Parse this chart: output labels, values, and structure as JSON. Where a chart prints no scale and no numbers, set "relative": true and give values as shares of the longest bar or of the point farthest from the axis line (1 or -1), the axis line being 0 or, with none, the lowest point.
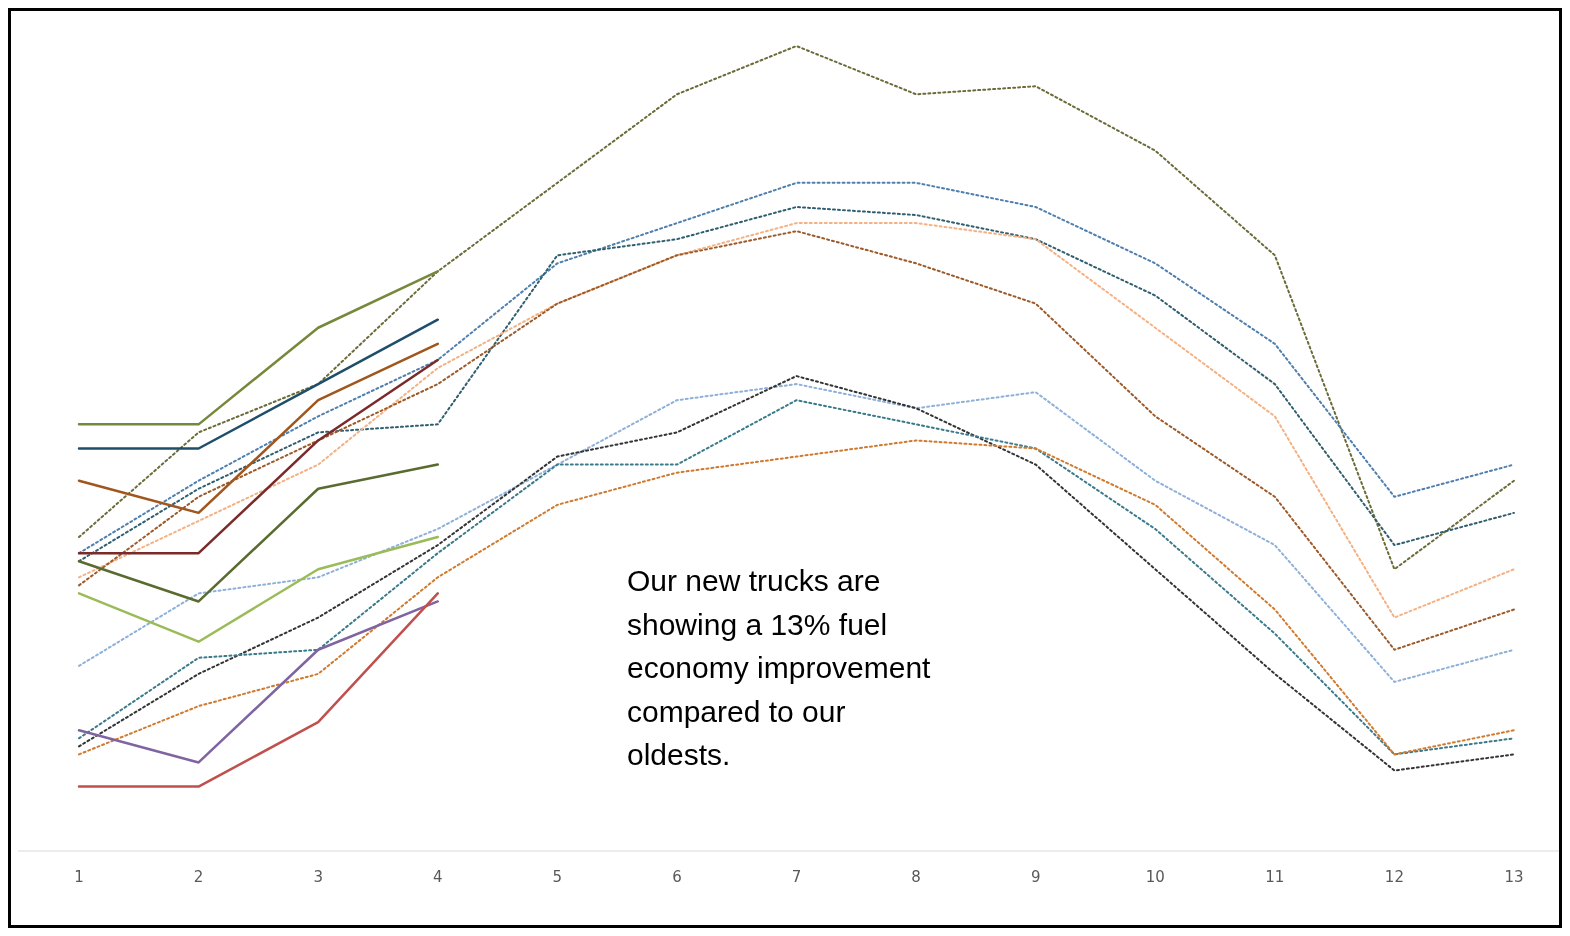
{
  "chart_data": {
    "type": "line",
    "relative": true,
    "categories": [
      "1",
      "2",
      "3",
      "4",
      "5",
      "6",
      "7",
      "8",
      "9",
      "10",
      "11",
      "12",
      "13"
    ],
    "annotations": [
      "Our new trucks are showing a 13% fuel economy improvement compared to our oldests."
    ],
    "series": [
      {
        "color": "#6b6b3a",
        "line_style": "dotted",
        "values": [
          0.39,
          0.52,
          0.58,
          0.72,
          0.83,
          0.94,
          1,
          0.94,
          0.95,
          0.87,
          0.74,
          0.35,
          0.46
        ]
      },
      {
        "color": "#4f7fae",
        "line_style": "dotted",
        "values": [
          0.37,
          0.46,
          0.54,
          0.61,
          0.73,
          0.78,
          0.83,
          0.83,
          0.8,
          0.73,
          0.63,
          0.44,
          0.48
        ]
      },
      {
        "color": "#2f5f6f",
        "line_style": "dotted",
        "values": [
          0.36,
          0.45,
          0.52,
          0.53,
          0.74,
          0.76,
          0.8,
          0.79,
          0.76,
          0.69,
          0.58,
          0.38,
          0.42
        ]
      },
      {
        "color": "#f4b183",
        "line_style": "dotted",
        "values": [
          0.34,
          0.41,
          0.48,
          0.6,
          0.68,
          0.74,
          0.78,
          0.78,
          0.76,
          0.65,
          0.54,
          0.29,
          0.35
        ]
      },
      {
        "color": "#9c5a2a",
        "line_style": "dotted",
        "values": [
          0.33,
          0.44,
          0.51,
          0.58,
          0.68,
          0.74,
          0.77,
          0.73,
          0.68,
          0.54,
          0.44,
          0.25,
          0.3
        ]
      },
      {
        "color": "#8fb0d8",
        "line_style": "dotted",
        "values": [
          0.23,
          0.32,
          0.34,
          0.4,
          0.48,
          0.56,
          0.58,
          0.55,
          0.57,
          0.46,
          0.38,
          0.21,
          0.25
        ]
      },
      {
        "color": "#333333",
        "line_style": "dotted",
        "values": [
          0.13,
          0.22,
          0.29,
          0.38,
          0.49,
          0.52,
          0.59,
          0.55,
          0.48,
          0.35,
          0.22,
          0.1,
          0.12
        ]
      },
      {
        "color": "#3a7a8a",
        "line_style": "dotted",
        "values": [
          0.14,
          0.24,
          0.25,
          0.37,
          0.48,
          0.48,
          0.56,
          0.53,
          0.5,
          0.4,
          0.27,
          0.12,
          0.14
        ]
      },
      {
        "color": "#d07a30",
        "line_style": "dotted",
        "values": [
          0.12,
          0.18,
          0.22,
          0.34,
          0.43,
          0.47,
          0.49,
          0.51,
          0.5,
          0.43,
          0.3,
          0.12,
          0.15
        ]
      },
      {
        "color": "#76883a",
        "line_style": "solid",
        "values": [
          0.53,
          0.53,
          0.65,
          0.72,
          null,
          null,
          null,
          null,
          null,
          null,
          null,
          null,
          null
        ]
      },
      {
        "color": "#1f4e6b",
        "line_style": "solid",
        "values": [
          0.5,
          0.5,
          0.58,
          0.66,
          null,
          null,
          null,
          null,
          null,
          null,
          null,
          null,
          null
        ]
      },
      {
        "color": "#a0561c",
        "line_style": "solid",
        "values": [
          0.46,
          0.42,
          0.56,
          0.63,
          null,
          null,
          null,
          null,
          null,
          null,
          null,
          null,
          null
        ]
      },
      {
        "color": "#7b2a2a",
        "line_style": "solid",
        "values": [
          0.37,
          0.37,
          0.51,
          0.61,
          null,
          null,
          null,
          null,
          null,
          null,
          null,
          null,
          null
        ]
      },
      {
        "color": "#5a6b30",
        "line_style": "solid",
        "values": [
          0.36,
          0.31,
          0.45,
          0.48,
          null,
          null,
          null,
          null,
          null,
          null,
          null,
          null,
          null
        ]
      },
      {
        "color": "#9bbb59",
        "line_style": "solid",
        "values": [
          0.32,
          0.26,
          0.35,
          0.39,
          null,
          null,
          null,
          null,
          null,
          null,
          null,
          null,
          null
        ]
      },
      {
        "color": "#8064a2",
        "line_style": "solid",
        "values": [
          0.15,
          0.11,
          0.25,
          0.31,
          null,
          null,
          null,
          null,
          null,
          null,
          null,
          null,
          null
        ]
      },
      {
        "color": "#c0504d",
        "line_style": "solid",
        "values": [
          0.08,
          0.08,
          0.16,
          0.32,
          null,
          null,
          null,
          null,
          null,
          null,
          null,
          null,
          null
        ]
      }
    ]
  }
}
